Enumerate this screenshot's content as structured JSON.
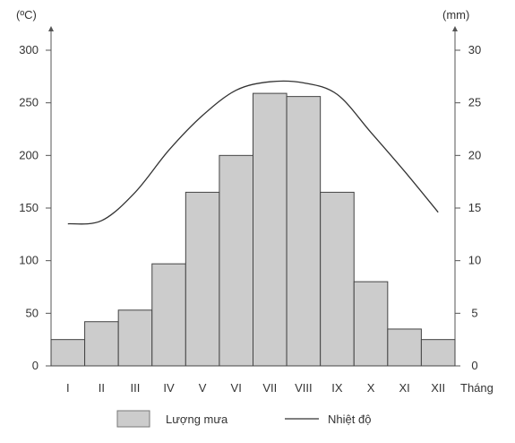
{
  "chart_data": {
    "type": "bar",
    "categories": [
      "I",
      "II",
      "III",
      "IV",
      "V",
      "VI",
      "VII",
      "VIII",
      "IX",
      "X",
      "XI",
      "XII"
    ],
    "x_axis_label": "Tháng",
    "left_axis": {
      "unit_label": "(ºC)",
      "ticks": [
        "0",
        "50",
        "100",
        "150",
        "200",
        "250",
        "300"
      ],
      "range": [
        0,
        300
      ]
    },
    "right_axis": {
      "unit_label": "(mm)",
      "ticks": [
        "0",
        "5",
        "10",
        "15",
        "20",
        "25",
        "30"
      ],
      "range": [
        0,
        30
      ]
    },
    "series": [
      {
        "name": "Lượng mưa",
        "kind": "bar",
        "axis": "left",
        "color": "#cccccc",
        "values": [
          25,
          42,
          53,
          97,
          165,
          200,
          259,
          256,
          165,
          80,
          35,
          25
        ]
      },
      {
        "name": "Nhiệt độ",
        "kind": "line",
        "axis": "left",
        "color": "#333333",
        "values": [
          135,
          138,
          165,
          205,
          238,
          262,
          270,
          269,
          258,
          222,
          185,
          146
        ]
      }
    ],
    "grid": false,
    "legend_position": "bottom"
  }
}
